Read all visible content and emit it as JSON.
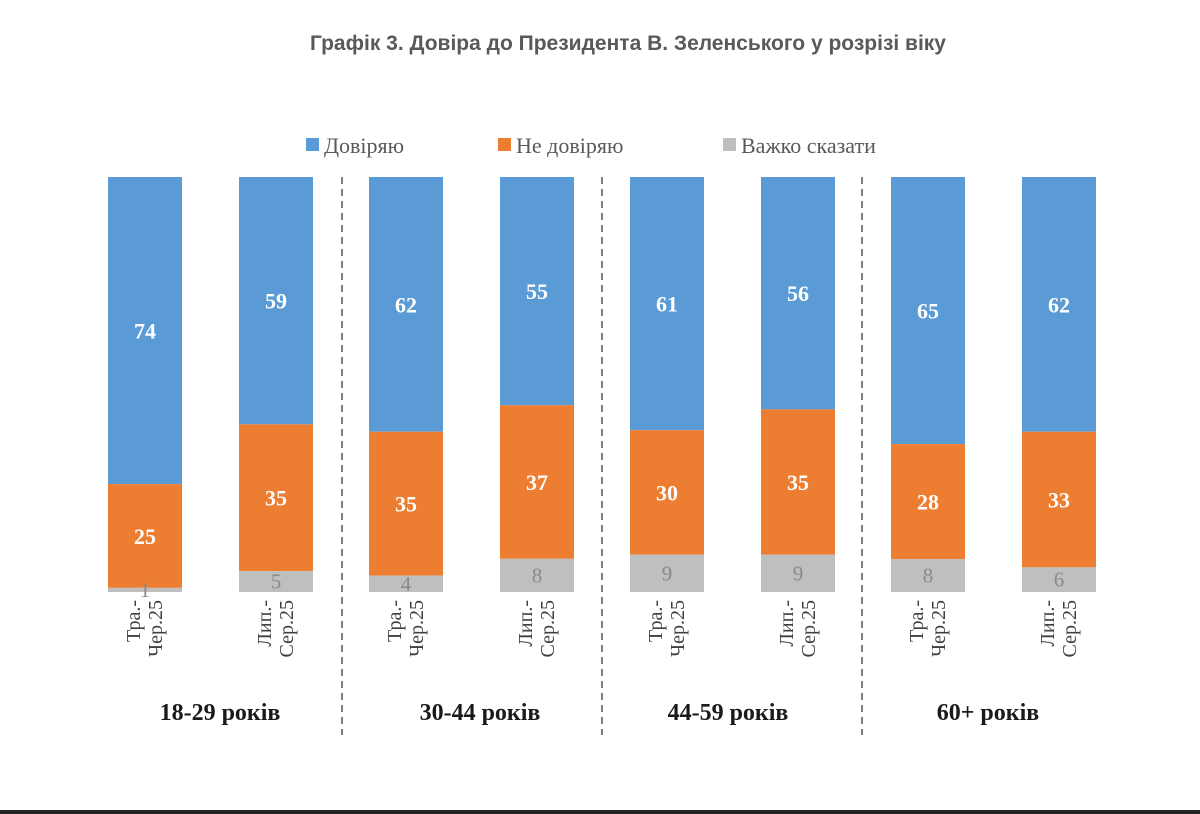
{
  "chart_data": {
    "type": "bar",
    "stacked": true,
    "percent_stacked": true,
    "title": "Графік 3. Довіра до Президента В. Зеленського у розрізі віку",
    "legend_position": "top",
    "colors": {
      "Довіряю": "#5b9bd5",
      "Не довіряю": "#ed7d31",
      "Важко сказати": "#bfbfbf"
    },
    "groups": [
      {
        "label": "18-29 років",
        "bars": [
          {
            "category": "Тра.-Чер.25",
            "values": {
              "Довіряю": 74,
              "Не довіряю": 25,
              "Важко сказати": 1
            }
          },
          {
            "category": "Лип.-Сер.25",
            "values": {
              "Довіряю": 59,
              "Не довіряю": 35,
              "Важко сказати": 5
            }
          }
        ]
      },
      {
        "label": "30-44 років",
        "bars": [
          {
            "category": "Тра.-Чер.25",
            "values": {
              "Довіряю": 62,
              "Не довіряю": 35,
              "Важко сказати": 4
            }
          },
          {
            "category": "Лип.-Сер.25",
            "values": {
              "Довіряю": 55,
              "Не довіряю": 37,
              "Важко сказати": 8
            }
          }
        ]
      },
      {
        "label": "44-59 років",
        "bars": [
          {
            "category": "Тра.-Чер.25",
            "values": {
              "Довіряю": 61,
              "Не довіряю": 30,
              "Важко сказати": 9
            }
          },
          {
            "category": "Лип.-Сер.25",
            "values": {
              "Довіряю": 56,
              "Не довіряю": 35,
              "Важко сказати": 9
            }
          }
        ]
      },
      {
        "label": "60+ років",
        "bars": [
          {
            "category": "Тра.-Чер.25",
            "values": {
              "Довіряю": 65,
              "Не довіряю": 28,
              "Важко сказати": 8
            }
          },
          {
            "category": "Лип.-Сер.25",
            "values": {
              "Довіряю": 62,
              "Не довіряю": 33,
              "Важко сказати": 6
            }
          }
        ]
      }
    ],
    "series": [
      {
        "name": "Довіряю"
      },
      {
        "name": "Не довіряю"
      },
      {
        "name": "Важко сказати"
      }
    ]
  }
}
